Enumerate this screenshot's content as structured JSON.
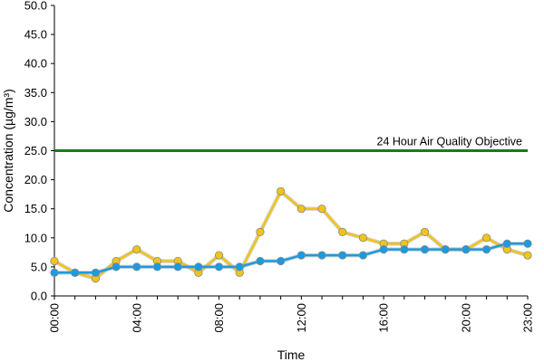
{
  "chart_data": {
    "type": "line",
    "xlabel": "Time",
    "ylabel": "Concentration (µg/m³)",
    "ylim": [
      0,
      50
    ],
    "yticks": [
      "0.0",
      "5.0",
      "10.0",
      "15.0",
      "20.0",
      "25.0",
      "30.0",
      "35.0",
      "40.0",
      "45.0",
      "50.0"
    ],
    "x": [
      "00:00",
      "01:00",
      "02:00",
      "03:00",
      "04:00",
      "05:00",
      "06:00",
      "07:00",
      "08:00",
      "09:00",
      "10:00",
      "11:00",
      "12:00",
      "13:00",
      "14:00",
      "15:00",
      "16:00",
      "17:00",
      "18:00",
      "19:00",
      "20:00",
      "21:00",
      "22:00",
      "23:00"
    ],
    "xtick_labels": [
      "00:00",
      "04:00",
      "08:00",
      "12:00",
      "16:00",
      "20:00",
      "23:00"
    ],
    "xtick_positions": [
      0,
      4,
      8,
      12,
      16,
      20,
      23
    ],
    "series": [
      {
        "color": "#f0c419",
        "values": [
          6,
          4,
          3,
          6,
          8,
          6,
          6,
          4,
          7,
          4,
          11,
          18,
          15,
          15,
          11,
          10,
          9,
          9,
          11,
          8,
          8,
          10,
          8,
          7
        ]
      },
      {
        "color": "#1a9be0",
        "values": [
          4,
          4,
          4,
          5,
          5,
          5,
          5,
          5,
          5,
          5,
          6,
          6,
          7,
          7,
          7,
          7,
          8,
          8,
          8,
          8,
          8,
          8,
          9,
          9
        ]
      }
    ],
    "reference_line": {
      "value": 25,
      "label": "24 Hour Air Quality Objective",
      "color": "#1a7a1a"
    },
    "grid": false,
    "legend": "none"
  }
}
